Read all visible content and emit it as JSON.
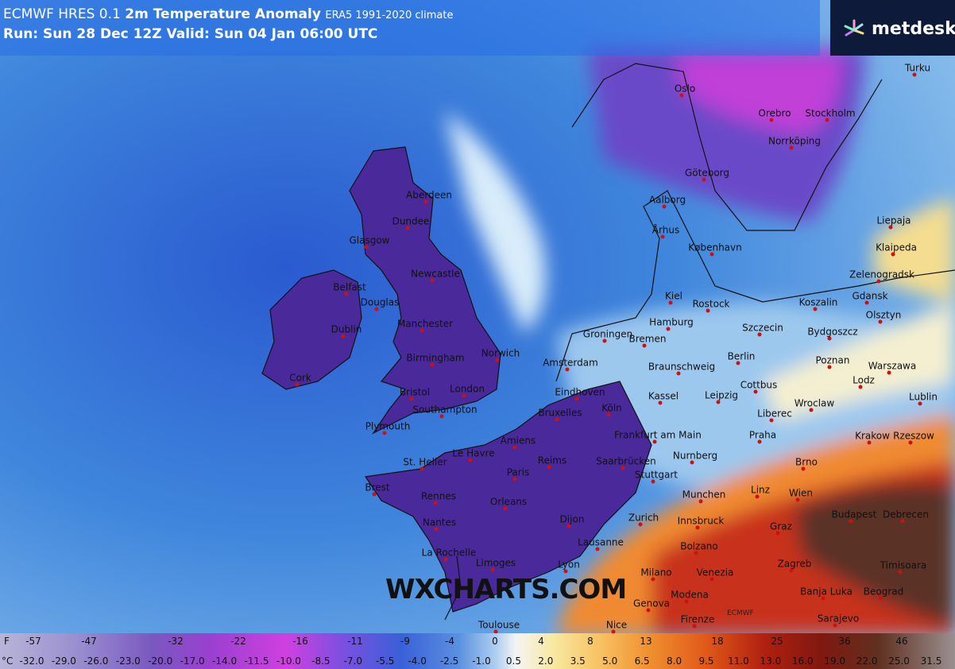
{
  "header": {
    "model": "ECMWF HRES 0.1",
    "parameter": "2m Temperature Anomaly",
    "climate": "ERA5 1991-2020 climate",
    "run": "Run: Sun 28 Dec 12Z Valid: Sun 04 Jan 06:00 UTC"
  },
  "logo": "metdesk",
  "watermark": "WXCHARTS.COM",
  "credit": "ECMWF",
  "cities": [
    "Oslo",
    "Orebro",
    "Stockholm",
    "Norrköping",
    "Turku",
    "Göteborg",
    "Aberdeen",
    "Dundee",
    "Glasgow",
    "Aalborg",
    "Århus",
    "Liepaja",
    "Klaipeda",
    "København",
    "Newcastle",
    "Zelenogradsk",
    "Belfast",
    "Douglas",
    "Kiel",
    "Rostock",
    "Koszalin",
    "Gdansk",
    "Olsztyn",
    "Dublin",
    "Manchester",
    "Hamburg",
    "Szczecin",
    "Bydgoszcz",
    "Groningen",
    "Bremen",
    "Norwich",
    "Birmingham",
    "Amsterdam",
    "Berlin",
    "Poznan",
    "Warszawa",
    "Braunschweig",
    "Cork",
    "Cottbus",
    "Lodz",
    "Bristol",
    "London",
    "Eindhoven",
    "Kassel",
    "Leipzig",
    "Wroclaw",
    "Lublin",
    "Southampton",
    "Bruxelles",
    "Köln",
    "Liberec",
    "Plymouth",
    "Frankfurt am Main",
    "Praha",
    "Krakow",
    "Rzeszow",
    "St. Helier",
    "Le Havre",
    "Amiens",
    "Reims",
    "Saarbrücken",
    "Nurnberg",
    "Brno",
    "Brest",
    "Rennes",
    "Paris",
    "Stuttgart",
    "Linz",
    "Wien",
    "Orleans",
    "Munchen",
    "Budapest",
    "Debrecen",
    "Nantes",
    "Dijon",
    "Zurich",
    "Innsbruck",
    "Graz",
    "Lausanne",
    "Bolzano",
    "La Rochelle",
    "Limoges",
    "Lyon",
    "Zagreb",
    "Timisoara",
    "Milano",
    "Venezia",
    "Beograd",
    "Modena",
    "Genova",
    "Banja Luka",
    "Toulouse",
    "Nice",
    "Firenze",
    "Sarajevo"
  ],
  "legend": {
    "fahrenheit": {
      "unit": "F",
      "labels": [
        -57,
        -47,
        -32,
        -22,
        -16,
        -11,
        -9,
        -4,
        0,
        4,
        8,
        13,
        18,
        25,
        36,
        46
      ]
    },
    "celsius": {
      "unit": "°C",
      "labels": [
        "-32.0",
        "-29.0",
        "-26.0",
        "-23.0",
        "-20.0",
        "-17.0",
        "-14.0",
        "-11.5",
        "-10.0",
        "-8.5",
        "-7.0",
        "-5.5",
        "-4.0",
        "-2.5",
        "-1.0",
        "0.5",
        "2.0",
        "3.5",
        "5.0",
        "6.5",
        "8.0",
        "9.5",
        "11.0",
        "13.0",
        "16.0",
        "19.0",
        "22.0",
        "25.0",
        "31.5"
      ]
    }
  }
}
